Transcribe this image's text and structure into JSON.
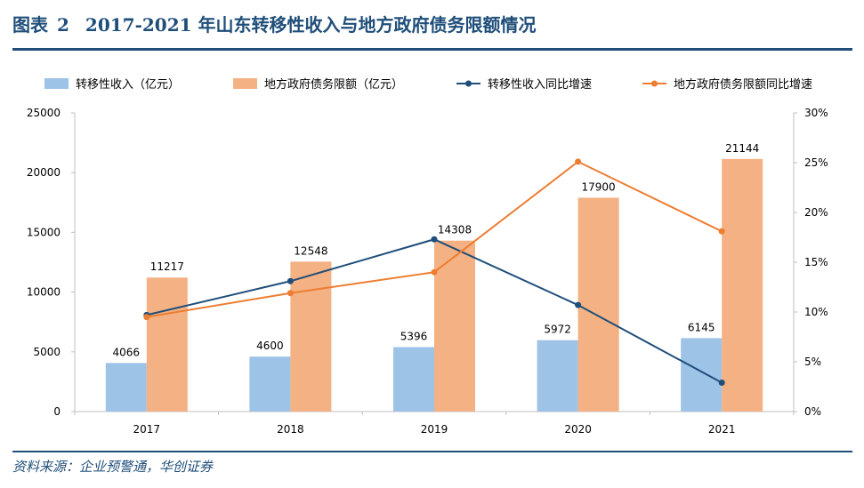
{
  "header": {
    "label": "图表",
    "number": "2",
    "title": "2017-2021 年山东转移性收入与地方政府债务限额情况"
  },
  "footer": {
    "source": "资料来源：企业预警通，华创证券"
  },
  "colors": {
    "title": "#1F4E79",
    "bar_transfer": "#9DC3E6",
    "bar_debt": "#F4B183",
    "line_transfer": "#1F4E79",
    "line_debt": "#ED7D31"
  },
  "chart_data": {
    "type": "bar+line",
    "categories": [
      "2017",
      "2018",
      "2019",
      "2020",
      "2021"
    ],
    "series": [
      {
        "name": "转移性收入（亿元）",
        "type": "bar",
        "axis": "left",
        "values": [
          4066,
          4600,
          5396,
          5972,
          6145
        ]
      },
      {
        "name": "地方政府债务限额（亿元）",
        "type": "bar",
        "axis": "left",
        "values": [
          11217,
          12548,
          14308,
          17900,
          21144
        ]
      },
      {
        "name": "转移性收入同比增速",
        "type": "line",
        "axis": "right",
        "values": [
          9.7,
          13.1,
          17.3,
          10.7,
          2.9
        ]
      },
      {
        "name": "地方政府债务限额同比增速",
        "type": "line",
        "axis": "right",
        "values": [
          9.5,
          11.9,
          14.0,
          25.1,
          18.1
        ]
      }
    ],
    "y_left": {
      "ylim": [
        0,
        25000
      ],
      "ticks": [
        "0",
        "5000",
        "10000",
        "15000",
        "20000",
        "25000"
      ]
    },
    "y_right": {
      "ylim": [
        0,
        30
      ],
      "ticks": [
        "0%",
        "5%",
        "10%",
        "15%",
        "20%",
        "25%",
        "30%"
      ]
    },
    "legend_position": "top",
    "grid": false
  }
}
